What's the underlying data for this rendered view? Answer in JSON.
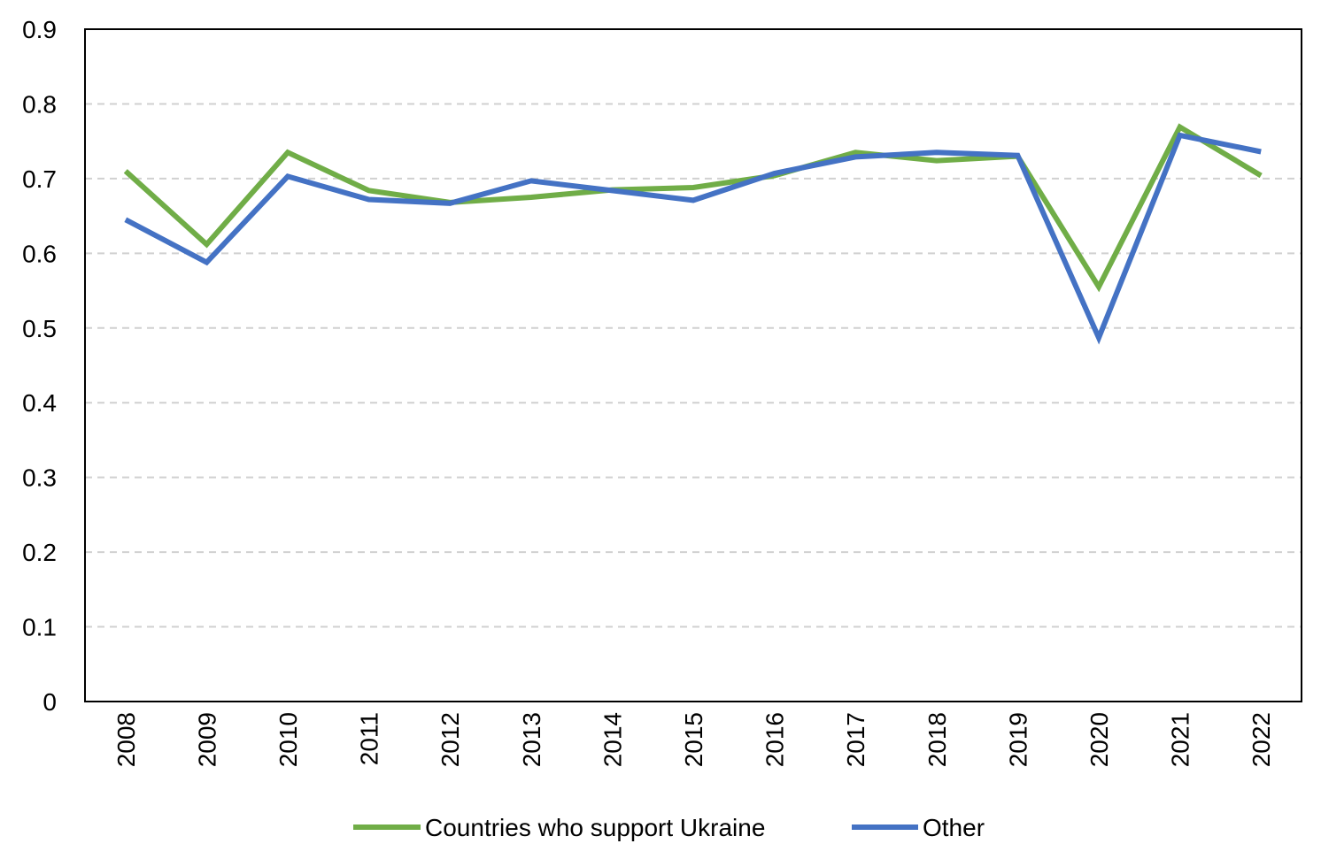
{
  "chart_data": {
    "type": "line",
    "title": "",
    "xlabel": "",
    "ylabel": "",
    "x": [
      "2008",
      "2009",
      "2010",
      "2011",
      "2012",
      "2013",
      "2014",
      "2015",
      "2016",
      "2017",
      "2018",
      "2019",
      "2020",
      "2021",
      "2022"
    ],
    "ylim": [
      0,
      0.9
    ],
    "yticks": [
      "0",
      "0.1",
      "0.2",
      "0.3",
      "0.4",
      "0.5",
      "0.6",
      "0.7",
      "0.8",
      "0.9"
    ],
    "grid": "horizontal dashed",
    "legend_position": "bottom",
    "series": [
      {
        "name": "Countries who support Ukraine",
        "color": "#70AD47",
        "values": [
          0.71,
          0.612,
          0.735,
          0.684,
          0.668,
          0.675,
          0.685,
          0.688,
          0.704,
          0.735,
          0.724,
          0.73,
          0.555,
          0.769,
          0.704
        ]
      },
      {
        "name": "Other",
        "color": "#4472C4",
        "values": [
          0.645,
          0.588,
          0.703,
          0.672,
          0.667,
          0.697,
          0.684,
          0.671,
          0.707,
          0.729,
          0.735,
          0.731,
          0.487,
          0.758,
          0.736
        ]
      }
    ]
  }
}
